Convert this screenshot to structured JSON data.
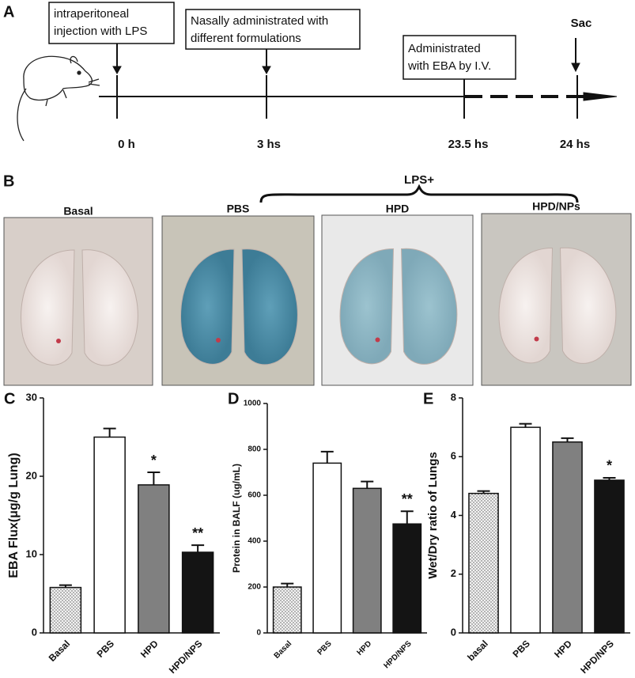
{
  "panel_a": {
    "label": "A",
    "boxes": [
      [
        "intraperitoneal",
        "injection with LPS"
      ],
      [
        "Nasally administrated with",
        "different formulations"
      ],
      [
        "Administrated",
        "with EBA by I.V."
      ]
    ],
    "sac": "Sac",
    "times": [
      "0 h",
      "3 hs",
      "23.5 hs",
      "24 hs"
    ]
  },
  "panel_b": {
    "label": "B",
    "group": "LPS+",
    "images": [
      "Basal",
      "PBS",
      "HPD",
      "HPD/NPs"
    ]
  },
  "chart_data": [
    {
      "type": "bar",
      "panel": "C",
      "ylabel": "EBA Flux(μg/g Lung)",
      "categories": [
        "Basal",
        "PBS",
        "HPD",
        "HPD/NPS"
      ],
      "values": [
        5.8,
        25,
        18.9,
        10.3
      ],
      "errors": [
        0.3,
        1.1,
        1.6,
        0.9
      ],
      "annotations": [
        null,
        null,
        "*",
        "**"
      ],
      "fills": [
        "dotted",
        "#ffffff",
        "#808080",
        "#141414"
      ],
      "ylim": [
        0,
        30
      ],
      "yticks": [
        0,
        10,
        20,
        30
      ]
    },
    {
      "type": "bar",
      "panel": "D",
      "ylabel": "Protein in BALF (ug/mL)",
      "categories": [
        "Basal",
        "PBS",
        "HPD",
        "HPD/NPS"
      ],
      "values": [
        200,
        740,
        630,
        475
      ],
      "errors": [
        15,
        50,
        30,
        55
      ],
      "annotations": [
        null,
        null,
        null,
        "**"
      ],
      "fills": [
        "dotted",
        "#ffffff",
        "#808080",
        "#141414"
      ],
      "ylim": [
        0,
        1000
      ],
      "yticks": [
        0,
        200,
        400,
        600,
        800,
        1000
      ]
    },
    {
      "type": "bar",
      "panel": "E",
      "ylabel": "Wet/Dry ratio of Lungs",
      "categories": [
        "basal",
        "PBS",
        "HPD",
        "HPD/NPS"
      ],
      "values": [
        4.75,
        7.0,
        6.5,
        5.2
      ],
      "errors": [
        0.08,
        0.12,
        0.13,
        0.08
      ],
      "annotations": [
        null,
        null,
        null,
        "*"
      ],
      "fills": [
        "dotted",
        "#ffffff",
        "#808080",
        "#141414"
      ],
      "ylim": [
        0,
        8
      ],
      "yticks": [
        0,
        2,
        4,
        6,
        8
      ]
    }
  ]
}
